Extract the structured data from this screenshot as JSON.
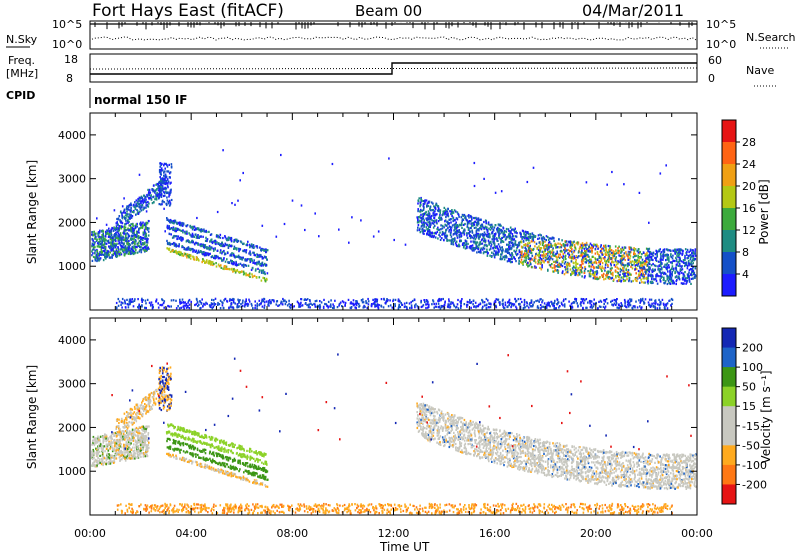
{
  "header": {
    "title": "Fort Hays East (fitACF)",
    "beam": "Beam 00",
    "date": "04/Mar/2011"
  },
  "top_panel": {
    "left_label": "N.Sky",
    "right_label": "N.Search",
    "left_ticks": [
      "10^5",
      "10^0"
    ],
    "right_ticks": [
      "10^5",
      "10^0"
    ]
  },
  "freq_panel": {
    "left_label_line1": "Freq.",
    "left_label_line2": "[MHz]",
    "right_label": "Nave",
    "left_ticks": [
      "18",
      "8"
    ],
    "right_ticks": [
      "60",
      "0"
    ],
    "cpid_label": "CPID",
    "cpid_text": "normal 150 IF"
  },
  "chart_data": [
    {
      "type": "heatmap",
      "name": "power",
      "ylabel": "Slant Range [km]",
      "xlabel": "",
      "yticks": [
        "1000",
        "2000",
        "3000",
        "4000"
      ],
      "ylim": [
        0,
        4500
      ],
      "xlim": [
        0,
        24
      ],
      "colorbar": {
        "label": "Power [dB]",
        "ticks": [
          "4",
          "8",
          "12",
          "16",
          "20",
          "24",
          "28"
        ],
        "colors": [
          "#1c1cff",
          "#1450c8",
          "#1e8c82",
          "#3caa3c",
          "#b4c814",
          "#f0a014",
          "#ff6414",
          "#e61414"
        ]
      }
    },
    {
      "type": "heatmap",
      "name": "velocity",
      "ylabel": "Slant Range [km]",
      "xlabel": "Time UT",
      "yticks": [
        "1000",
        "2000",
        "3000",
        "4000"
      ],
      "ylim": [
        0,
        4500
      ],
      "xlim": [
        0,
        24
      ],
      "xticks": [
        "00:00",
        "04:00",
        "08:00",
        "12:00",
        "16:00",
        "20:00",
        "00:00"
      ],
      "colorbar": {
        "label": "Velocity [m s⁻¹]",
        "ticks": [
          "200",
          "100",
          "50",
          "15",
          "-15",
          "-50",
          "-100",
          "-200"
        ],
        "colors": [
          "#1428b4",
          "#1e64c8",
          "#3c9614",
          "#8cd228",
          "#c8c8c0",
          "#c8c8c0",
          "#ffaa1e",
          "#ff7814",
          "#e61414"
        ]
      }
    }
  ]
}
